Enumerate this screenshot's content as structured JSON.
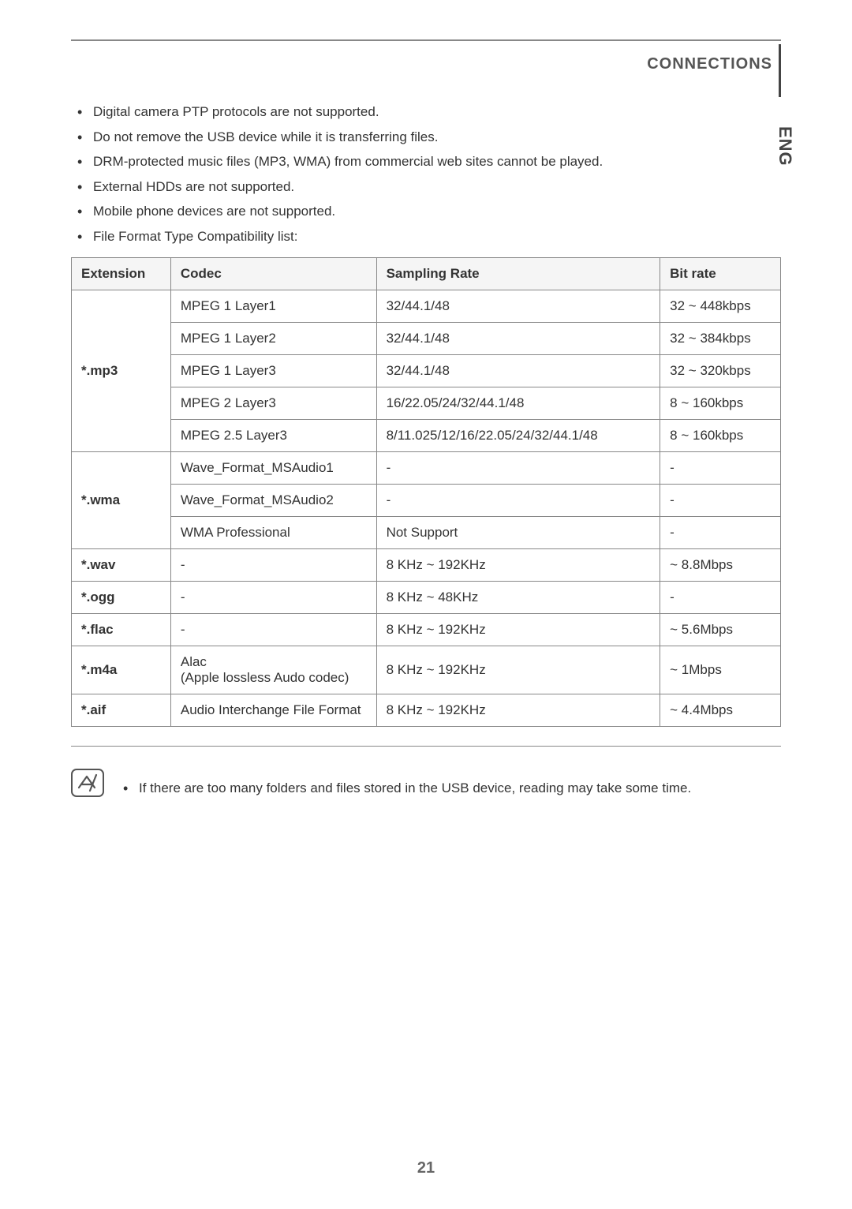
{
  "header": {
    "title": "CONNECTIONS"
  },
  "sideTab": "ENG",
  "notes": [
    "Digital camera PTP protocols are not supported.",
    "Do not remove the USB device while it is transferring files.",
    "DRM-protected music files (MP3, WMA) from commercial web sites cannot be played.",
    "External HDDs are not supported.",
    "Mobile phone devices are not supported.",
    "File Format Type Compatibility list:"
  ],
  "table": {
    "columns": [
      "Extension",
      "Codec",
      "Sampling Rate",
      "Bit rate"
    ],
    "rows": [
      {
        "ext": "*.mp3",
        "codec": "MPEG 1 Layer1",
        "rate": "32/44.1/48",
        "bitrate": "32 ~ 448kbps",
        "rowspan": 5
      },
      {
        "ext": "",
        "codec": "MPEG 1 Layer2",
        "rate": "32/44.1/48",
        "bitrate": "32 ~ 384kbps"
      },
      {
        "ext": "",
        "codec": "MPEG 1 Layer3",
        "rate": "32/44.1/48",
        "bitrate": "32 ~ 320kbps"
      },
      {
        "ext": "",
        "codec": "MPEG 2 Layer3",
        "rate": "16/22.05/24/32/44.1/48",
        "bitrate": "8 ~ 160kbps"
      },
      {
        "ext": "",
        "codec": "MPEG 2.5 Layer3",
        "rate": "8/11.025/12/16/22.05/24/32/44.1/48",
        "bitrate": "8 ~ 160kbps"
      },
      {
        "ext": "*.wma",
        "codec": "Wave_Format_MSAudio1",
        "rate": "-",
        "bitrate": "-",
        "rowspan": 3
      },
      {
        "ext": "",
        "codec": "Wave_Format_MSAudio2",
        "rate": "-",
        "bitrate": "-"
      },
      {
        "ext": "",
        "codec": "WMA Professional",
        "rate": "Not Support",
        "bitrate": "-"
      },
      {
        "ext": "*.wav",
        "codec": "-",
        "rate": "8 KHz ~ 192KHz",
        "bitrate": "~ 8.8Mbps",
        "rowspan": 1
      },
      {
        "ext": "*.ogg",
        "codec": "-",
        "rate": "8 KHz ~ 48KHz",
        "bitrate": "-",
        "rowspan": 1
      },
      {
        "ext": "*.flac",
        "codec": "-",
        "rate": "8 KHz ~ 192KHz",
        "bitrate": "~ 5.6Mbps",
        "rowspan": 1
      },
      {
        "ext": "*.m4a",
        "codec": "Alac\n(Apple lossless Audo codec)",
        "rate": "8 KHz ~ 192KHz",
        "bitrate": "~ 1Mbps",
        "rowspan": 1
      },
      {
        "ext": "*.aif",
        "codec": "Audio Interchange File Format",
        "rate": "8 KHz ~ 192KHz",
        "bitrate": "~ 4.4Mbps",
        "rowspan": 1
      }
    ]
  },
  "footnote": "If there are too many folders and files stored in the USB device, reading may take some time.",
  "pageNumber": "21"
}
